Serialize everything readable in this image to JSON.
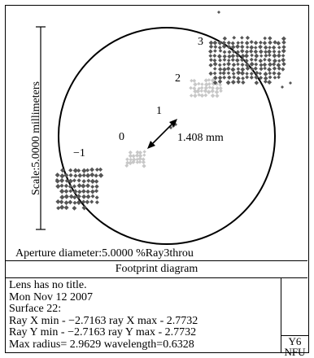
{
  "plot": {
    "scale_label": "Scale:5.0000 millimeters",
    "field_labels": [
      "−1",
      "0",
      "1",
      "2",
      "3"
    ],
    "distance_label": "1.408 mm",
    "aperture_text": "Aperture diameter:5.0000  %Ray3throu"
  },
  "caption": "Footprint diagram",
  "info": {
    "lines": [
      "Lens has no title.",
      "Mon Nov 12 2007",
      "Surface 22:",
      "Ray X min - −2.7163   ray X max - 2.7732",
      "Ray Y min - −2.7163   ray Y max - 2.7732",
      "Max radius= 2.9629     wavelength=0.6328"
    ]
  },
  "side_box": {
    "line1": "Y6",
    "line2": "NFU"
  },
  "colors": {
    "dark_spots": "#555555",
    "light_spots": "#c8c8c8",
    "lines": "#000000"
  }
}
